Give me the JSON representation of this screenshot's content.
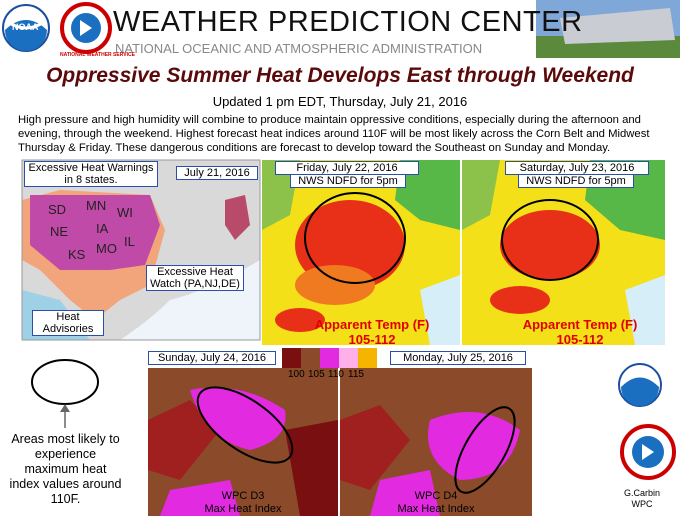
{
  "header": {
    "title": "WEATHER PREDICTION CENTER",
    "subtitle": "NATIONAL OCEANIC AND ATMOSPHERIC ADMINISTRATION",
    "logos": [
      "NOAA",
      "NATIONAL WEATHER SERVICE"
    ]
  },
  "headline": "Oppressive Summer Heat Develops East through Weekend",
  "updated": "Updated 1 pm EDT, Thursday, July 21, 2016",
  "summary": "High pressure and high humidity will combine to produce maintain oppressive conditions, especially during the afternoon and evening, through the weekend. Highest forecast heat indices around 110F will be most likely across the Corn Belt and Midwest Thursday & Friday. These dangerous conditions are forecast to develop toward the Southeast on Sunday and Monday.",
  "panels": [
    {
      "date": "July 21, 2016",
      "callouts": [
        "Excessive Heat Warnings in 8 states.",
        "Excessive Heat Watch (PA,NJ,DE)",
        "Heat Advisories"
      ],
      "states": [
        "SD",
        "MN",
        "WI",
        "NE",
        "IA",
        "IL",
        "KS",
        "MO"
      ]
    },
    {
      "date": "Friday, July 22, 2016",
      "source": "NWS NDFD for 5pm",
      "label": "Apparent Temp (F)",
      "range": "105-112"
    },
    {
      "date": "Saturday, July 23, 2016",
      "source": "NWS NDFD for 5pm",
      "label": "Apparent Temp (F)",
      "range": "105-112"
    },
    {
      "date": "Sunday, July 24, 2016",
      "source": "WPC D3",
      "label": "Max Heat Index"
    },
    {
      "date": "Monday, July 25, 2016",
      "source": "WPC D4",
      "label": "Max Heat Index"
    }
  ],
  "legend": {
    "labels": [
      100,
      105,
      110,
      115
    ]
  },
  "key": "Areas most likely to experience maximum heat index values around 110F.",
  "credit": [
    "G.Carbin",
    "WPC"
  ]
}
